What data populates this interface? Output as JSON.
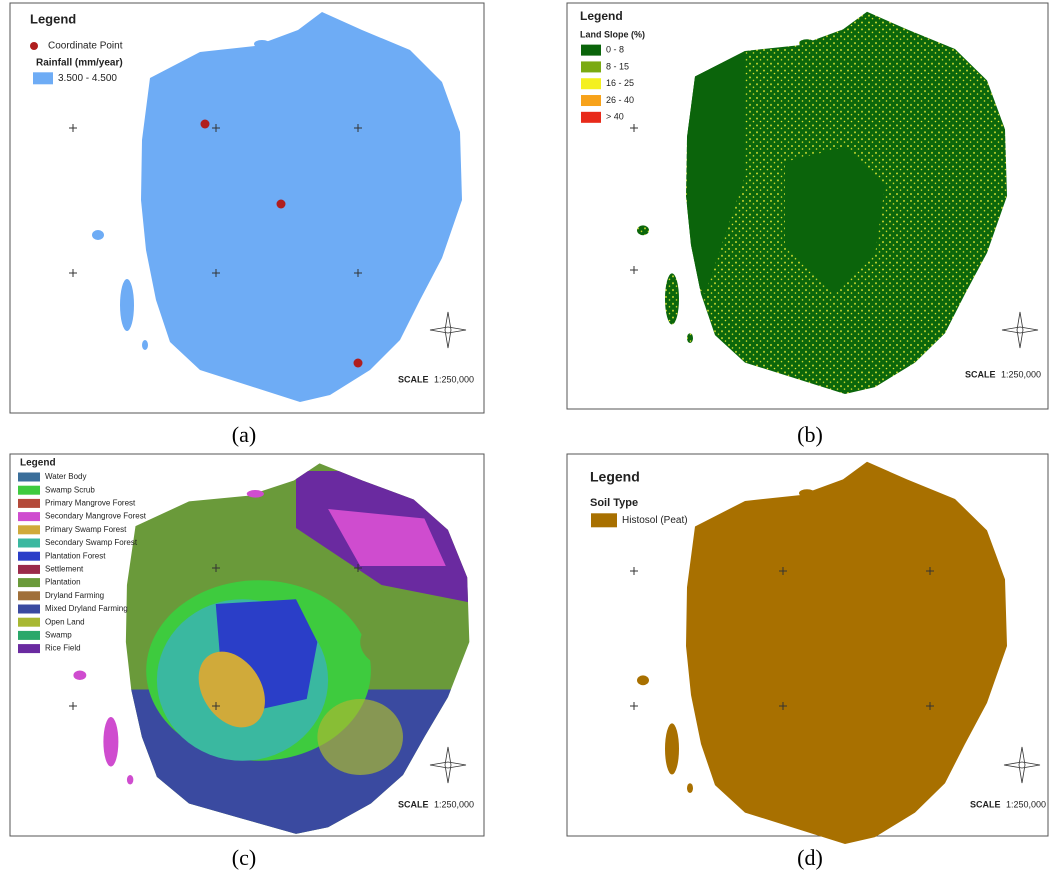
{
  "panels": [
    {
      "caption": "(a)",
      "legend": {
        "title": "Legend",
        "entries": [
          {
            "kind": "point",
            "label": "Coordinate Point",
            "color": "#b01e1e"
          },
          {
            "kind": "heading",
            "label": "Rainfall (mm/year)"
          },
          {
            "kind": "swatch",
            "label": "3.500 - 4.500",
            "color": "#6eacf5"
          }
        ]
      },
      "scale": {
        "label": "SCALE",
        "ratio": "1:250,000"
      }
    },
    {
      "caption": "(b)",
      "legend": {
        "title": "Legend",
        "entries": [
          {
            "kind": "heading",
            "label": "Land Slope (%)"
          },
          {
            "kind": "swatch",
            "label": "0 - 8",
            "color": "#0a640a"
          },
          {
            "kind": "swatch",
            "label": "8 - 15",
            "color": "#7aaa12"
          },
          {
            "kind": "swatch",
            "label": "16 - 25",
            "color": "#f4f020"
          },
          {
            "kind": "swatch",
            "label": "26 - 40",
            "color": "#f7a21a"
          },
          {
            "kind": "swatch",
            "label": "> 40",
            "color": "#e82a1a"
          }
        ]
      },
      "scale": {
        "label": "SCALE",
        "ratio": "1:250,000"
      }
    },
    {
      "caption": "(c)",
      "legend": {
        "title": "Legend",
        "entries": [
          {
            "kind": "swatch",
            "label": "Water Body",
            "color": "#3a6e9a"
          },
          {
            "kind": "swatch",
            "label": "Swamp Scrub",
            "color": "#3ecb3e"
          },
          {
            "kind": "swatch",
            "label": "Primary Mangrove Forest",
            "color": "#b44a3a"
          },
          {
            "kind": "swatch",
            "label": "Secondary Mangrove Forest",
            "color": "#cf4ccf"
          },
          {
            "kind": "swatch",
            "label": "Primary Swamp Forest",
            "color": "#d0aa3a"
          },
          {
            "kind": "swatch",
            "label": "Secondary Swamp Forest",
            "color": "#3ab8a0"
          },
          {
            "kind": "swatch",
            "label": "Plantation Forest",
            "color": "#2a3ec8"
          },
          {
            "kind": "swatch",
            "label": "Settlement",
            "color": "#9a2a4a"
          },
          {
            "kind": "swatch",
            "label": "Plantation",
            "color": "#6a9a3a"
          },
          {
            "kind": "swatch",
            "label": "Dryland Farming",
            "color": "#a0703a"
          },
          {
            "kind": "swatch",
            "label": "Mixed Dryland Farming",
            "color": "#3a4aa0"
          },
          {
            "kind": "swatch",
            "label": "Open Land",
            "color": "#a8b832"
          },
          {
            "kind": "swatch",
            "label": "Swamp",
            "color": "#2aa86a"
          },
          {
            "kind": "swatch",
            "label": "Rice Field",
            "color": "#6a2aa0"
          }
        ]
      },
      "scale": {
        "label": "SCALE",
        "ratio": "1:250,000"
      }
    },
    {
      "caption": "(d)",
      "legend": {
        "title": "Legend",
        "entries": [
          {
            "kind": "heading",
            "label": "Soil Type"
          },
          {
            "kind": "swatch",
            "label": "Histosol (Peat)",
            "color": "#a87000"
          }
        ]
      },
      "scale": {
        "label": "SCALE",
        "ratio": "1:250,000"
      }
    }
  ]
}
